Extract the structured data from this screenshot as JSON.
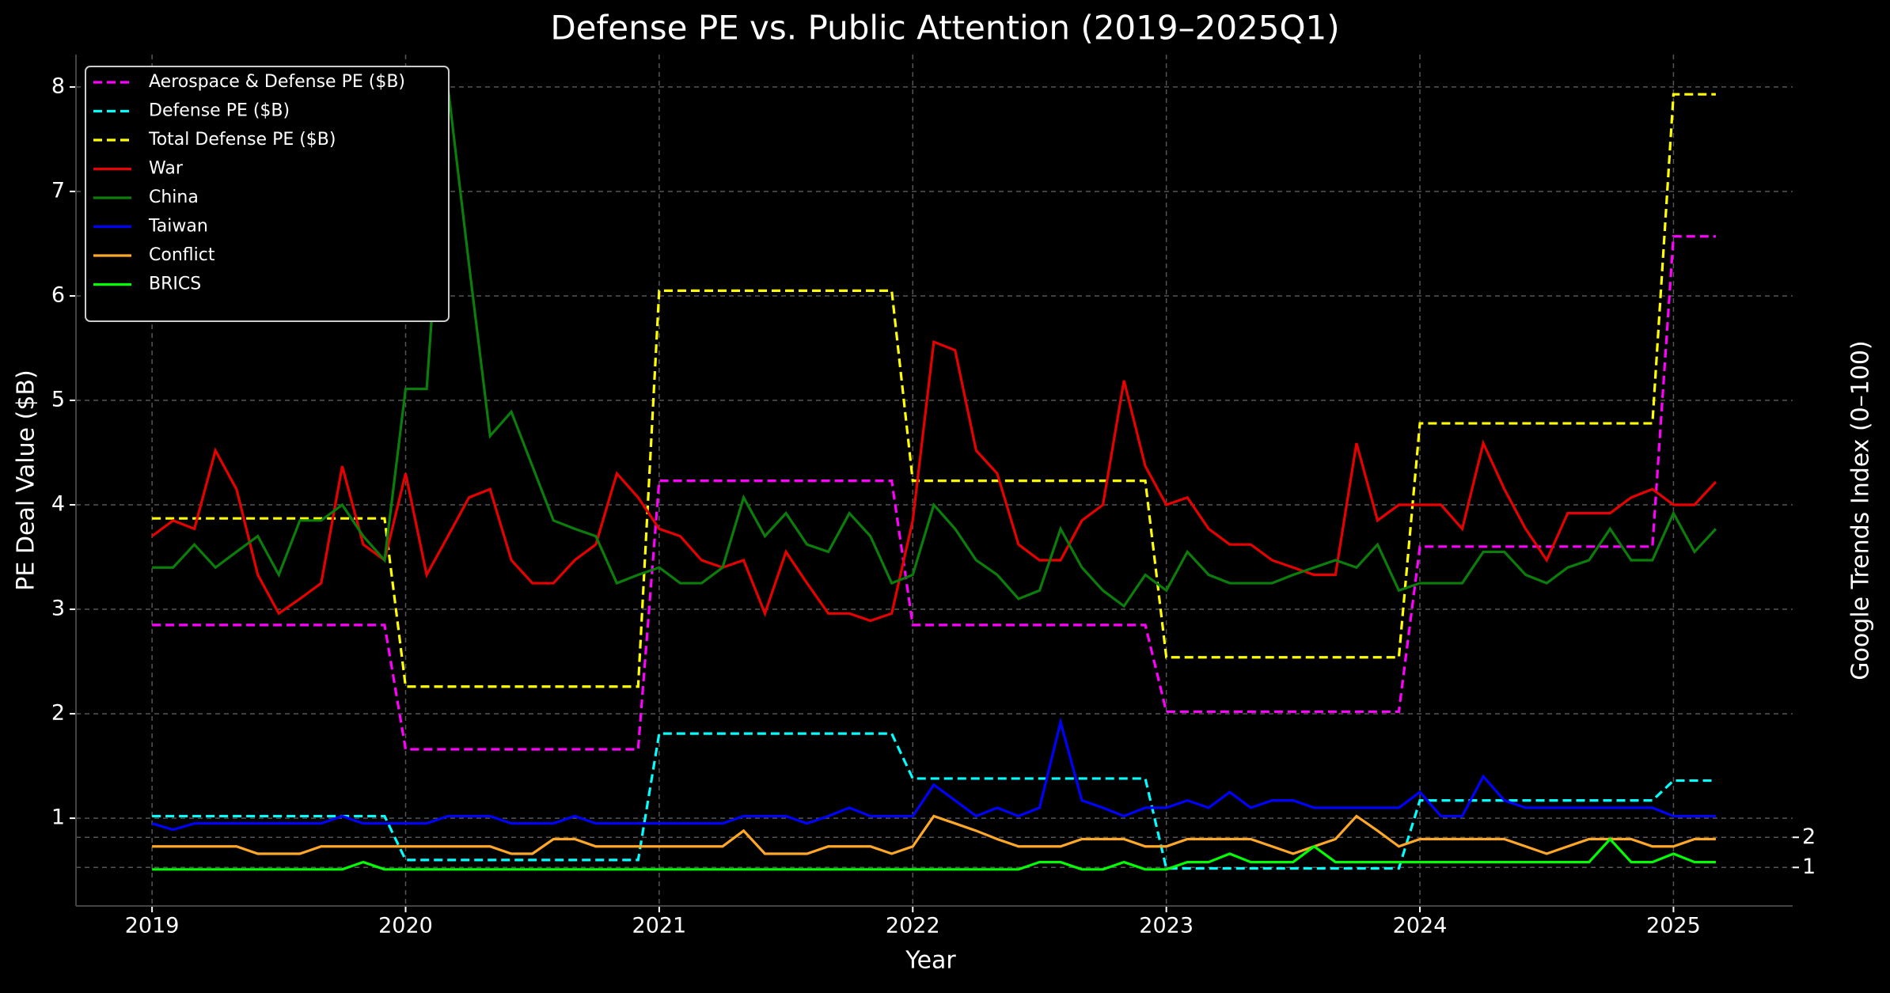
{
  "chart_data": {
    "type": "line",
    "title": "Defense PE vs. Public Attention (2019–2025Q1)",
    "xlabel": "Year",
    "ylabel": "PE Deal Value ($B)",
    "y2label": "Google Trends Index (0–100)",
    "xlim": [
      2018.7,
      2025.47
    ],
    "xticks": [
      2019,
      2020,
      2021,
      2022,
      2023,
      2024,
      2025
    ],
    "ylim": [
      0.16,
      8.31
    ],
    "yticks": [
      1,
      2,
      3,
      4,
      5,
      6,
      7,
      8
    ],
    "y2lim": [
      -0.28,
      28
    ],
    "y2ticks": [
      1,
      2
    ],
    "grid": true,
    "legend_loc": "upper left",
    "x": [
      2019,
      2019.083,
      2019.167,
      2019.25,
      2019.333,
      2019.417,
      2019.5,
      2019.583,
      2019.667,
      2019.75,
      2019.833,
      2019.917,
      2020,
      2020.083,
      2020.167,
      2020.25,
      2020.333,
      2020.417,
      2020.5,
      2020.583,
      2020.667,
      2020.75,
      2020.833,
      2020.917,
      2021,
      2021.083,
      2021.167,
      2021.25,
      2021.333,
      2021.417,
      2021.5,
      2021.583,
      2021.667,
      2021.75,
      2021.833,
      2021.917,
      2022,
      2022.083,
      2022.167,
      2022.25,
      2022.333,
      2022.417,
      2022.5,
      2022.583,
      2022.667,
      2022.75,
      2022.833,
      2022.917,
      2023,
      2023.083,
      2023.167,
      2023.25,
      2023.333,
      2023.417,
      2023.5,
      2023.583,
      2023.667,
      2023.75,
      2023.833,
      2023.917,
      2024,
      2024.083,
      2024.167,
      2024.25,
      2024.333,
      2024.417,
      2024.5,
      2024.583,
      2024.667,
      2024.75,
      2024.833,
      2024.917,
      2025,
      2025.083,
      2025.167
    ],
    "series": [
      {
        "name": "Aerospace & Defense PE ($B)",
        "color": "#ff00ff",
        "linestyle": "dashed",
        "values": [
          2.85,
          2.85,
          2.85,
          2.85,
          2.85,
          2.85,
          2.85,
          2.85,
          2.85,
          2.85,
          2.85,
          2.85,
          1.66,
          1.66,
          1.66,
          1.66,
          1.66,
          1.66,
          1.66,
          1.66,
          1.66,
          1.66,
          1.66,
          1.66,
          4.23,
          4.23,
          4.23,
          4.23,
          4.23,
          4.23,
          4.23,
          4.23,
          4.23,
          4.23,
          4.23,
          4.23,
          2.85,
          2.85,
          2.85,
          2.85,
          2.85,
          2.85,
          2.85,
          2.85,
          2.85,
          2.85,
          2.85,
          2.85,
          2.02,
          2.02,
          2.02,
          2.02,
          2.02,
          2.02,
          2.02,
          2.02,
          2.02,
          2.02,
          2.02,
          2.02,
          3.6,
          3.6,
          3.6,
          3.6,
          3.6,
          3.6,
          3.6,
          3.6,
          3.6,
          3.6,
          3.6,
          3.6,
          6.57,
          6.57,
          6.57
        ]
      },
      {
        "name": "Defense PE ($B)",
        "color": "#00ffff",
        "linestyle": "dashed",
        "values": [
          1.02,
          1.02,
          1.02,
          1.02,
          1.02,
          1.02,
          1.02,
          1.02,
          1.02,
          1.02,
          1.02,
          1.02,
          0.6,
          0.6,
          0.6,
          0.6,
          0.6,
          0.6,
          0.6,
          0.6,
          0.6,
          0.6,
          0.6,
          0.6,
          1.81,
          1.81,
          1.81,
          1.81,
          1.81,
          1.81,
          1.81,
          1.81,
          1.81,
          1.81,
          1.81,
          1.81,
          1.38,
          1.38,
          1.38,
          1.38,
          1.38,
          1.38,
          1.38,
          1.38,
          1.38,
          1.38,
          1.38,
          1.38,
          0.52,
          0.52,
          0.52,
          0.52,
          0.52,
          0.52,
          0.52,
          0.52,
          0.52,
          0.52,
          0.52,
          0.52,
          1.17,
          1.17,
          1.17,
          1.17,
          1.17,
          1.17,
          1.17,
          1.17,
          1.17,
          1.17,
          1.17,
          1.17,
          1.36,
          1.36,
          1.36
        ]
      },
      {
        "name": "Total Defense PE ($B)",
        "color": "#ffff00",
        "linestyle": "dashed",
        "values": [
          3.87,
          3.87,
          3.87,
          3.87,
          3.87,
          3.87,
          3.87,
          3.87,
          3.87,
          3.87,
          3.87,
          3.87,
          2.26,
          2.26,
          2.26,
          2.26,
          2.26,
          2.26,
          2.26,
          2.26,
          2.26,
          2.26,
          2.26,
          2.26,
          6.05,
          6.05,
          6.05,
          6.05,
          6.05,
          6.05,
          6.05,
          6.05,
          6.05,
          6.05,
          6.05,
          6.05,
          4.23,
          4.23,
          4.23,
          4.23,
          4.23,
          4.23,
          4.23,
          4.23,
          4.23,
          4.23,
          4.23,
          4.23,
          2.54,
          2.54,
          2.54,
          2.54,
          2.54,
          2.54,
          2.54,
          2.54,
          2.54,
          2.54,
          2.54,
          2.54,
          4.78,
          4.78,
          4.78,
          4.78,
          4.78,
          4.78,
          4.78,
          4.78,
          4.78,
          4.78,
          4.78,
          4.78,
          7.93,
          7.93,
          7.93
        ]
      },
      {
        "name": "War",
        "color": "#e60000",
        "linestyle": "solid",
        "values": [
          3.7,
          3.85,
          3.77,
          4.52,
          4.15,
          3.33,
          2.96,
          3.1,
          3.25,
          4.37,
          3.62,
          3.47,
          4.3,
          3.33,
          3.7,
          4.07,
          4.15,
          3.47,
          3.25,
          3.25,
          3.47,
          3.62,
          4.3,
          4.07,
          3.77,
          3.7,
          3.47,
          3.4,
          3.47,
          2.96,
          3.55,
          3.25,
          2.96,
          2.96,
          2.89,
          2.96,
          3.85,
          5.56,
          5.48,
          4.52,
          4.3,
          3.62,
          3.47,
          3.47,
          3.85,
          4.0,
          5.19,
          4.37,
          4.0,
          4.07,
          3.77,
          3.62,
          3.62,
          3.47,
          3.4,
          3.33,
          3.33,
          4.59,
          3.85,
          4.0,
          4.0,
          4.0,
          3.77,
          4.59,
          4.15,
          3.77,
          3.47,
          3.92,
          3.92,
          3.92,
          4.07,
          4.15,
          4.0,
          4.0,
          4.22
        ]
      },
      {
        "name": "China",
        "color": "#0a7d0a",
        "linestyle": "solid",
        "values": [
          3.4,
          3.4,
          3.62,
          3.4,
          3.55,
          3.7,
          3.33,
          3.85,
          3.85,
          4.0,
          3.7,
          3.47,
          5.11,
          5.11,
          8.0,
          6.3,
          4.66,
          4.89,
          4.37,
          3.85,
          3.77,
          3.7,
          3.25,
          3.33,
          3.4,
          3.25,
          3.25,
          3.4,
          4.07,
          3.7,
          3.92,
          3.62,
          3.55,
          3.92,
          3.7,
          3.25,
          3.33,
          4.0,
          3.77,
          3.47,
          3.33,
          3.1,
          3.18,
          3.77,
          3.4,
          3.18,
          3.03,
          3.33,
          3.18,
          3.55,
          3.33,
          3.25,
          3.25,
          3.25,
          3.33,
          3.4,
          3.47,
          3.4,
          3.62,
          3.18,
          3.25,
          3.25,
          3.25,
          3.55,
          3.55,
          3.33,
          3.25,
          3.4,
          3.47,
          3.77,
          3.47,
          3.47,
          3.92,
          3.55,
          3.77
        ]
      },
      {
        "name": "Taiwan",
        "color": "#0000ff",
        "linestyle": "solid",
        "values": [
          0.95,
          0.89,
          0.95,
          0.95,
          0.95,
          0.95,
          0.95,
          0.95,
          0.95,
          1.02,
          0.95,
          0.95,
          0.95,
          0.95,
          1.02,
          1.02,
          1.02,
          0.95,
          0.95,
          0.95,
          1.02,
          0.95,
          0.95,
          0.95,
          0.95,
          0.95,
          0.95,
          0.95,
          1.02,
          1.02,
          1.02,
          0.95,
          1.02,
          1.1,
          1.02,
          1.02,
          1.02,
          1.32,
          1.17,
          1.02,
          1.1,
          1.02,
          1.1,
          1.92,
          1.17,
          1.1,
          1.02,
          1.1,
          1.1,
          1.17,
          1.1,
          1.25,
          1.1,
          1.17,
          1.17,
          1.1,
          1.1,
          1.1,
          1.1,
          1.1,
          1.25,
          1.02,
          1.02,
          1.4,
          1.17,
          1.1,
          1.1,
          1.1,
          1.1,
          1.1,
          1.1,
          1.1,
          1.02,
          1.02,
          1.02
        ]
      },
      {
        "name": "Conflict",
        "color": "#ffa726",
        "linestyle": "solid",
        "values": [
          0.73,
          0.73,
          0.73,
          0.73,
          0.73,
          0.66,
          0.66,
          0.66,
          0.73,
          0.73,
          0.73,
          0.73,
          0.73,
          0.73,
          0.73,
          0.73,
          0.73,
          0.66,
          0.66,
          0.8,
          0.8,
          0.73,
          0.73,
          0.73,
          0.73,
          0.73,
          0.73,
          0.73,
          0.88,
          0.66,
          0.66,
          0.66,
          0.73,
          0.73,
          0.73,
          0.66,
          0.73,
          1.02,
          0.95,
          0.88,
          0.8,
          0.73,
          0.73,
          0.73,
          0.8,
          0.8,
          0.8,
          0.73,
          0.73,
          0.8,
          0.8,
          0.8,
          0.8,
          0.73,
          0.66,
          0.73,
          0.8,
          1.02,
          0.88,
          0.73,
          0.8,
          0.8,
          0.8,
          0.8,
          0.8,
          0.73,
          0.66,
          0.73,
          0.8,
          0.8,
          0.8,
          0.73,
          0.73,
          0.8,
          0.8
        ]
      },
      {
        "name": "BRICS",
        "color": "#00ff00",
        "linestyle": "solid",
        "values": [
          0.51,
          0.51,
          0.51,
          0.51,
          0.51,
          0.51,
          0.51,
          0.51,
          0.51,
          0.51,
          0.58,
          0.51,
          0.51,
          0.51,
          0.51,
          0.51,
          0.51,
          0.51,
          0.51,
          0.51,
          0.51,
          0.51,
          0.51,
          0.51,
          0.51,
          0.51,
          0.51,
          0.51,
          0.51,
          0.51,
          0.51,
          0.51,
          0.51,
          0.51,
          0.51,
          0.51,
          0.51,
          0.51,
          0.51,
          0.51,
          0.51,
          0.51,
          0.58,
          0.58,
          0.51,
          0.51,
          0.58,
          0.51,
          0.51,
          0.58,
          0.58,
          0.66,
          0.58,
          0.58,
          0.58,
          0.73,
          0.58,
          0.58,
          0.58,
          0.58,
          0.58,
          0.58,
          0.58,
          0.58,
          0.58,
          0.58,
          0.58,
          0.58,
          0.58,
          0.8,
          0.58,
          0.58,
          0.66,
          0.58,
          0.58
        ]
      }
    ]
  }
}
